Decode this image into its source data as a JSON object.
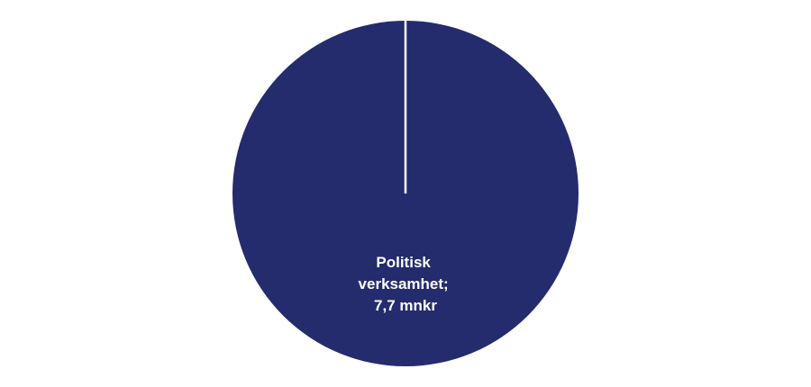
{
  "chart_data": {
    "type": "pie",
    "slices": [
      {
        "label": "Politisk verksamhet",
        "value": 7.7,
        "unit": "mnkr",
        "color": "#242c6e",
        "data_label_lines": [
          "Politisk",
          "verksamhet;",
          "7,7 mnkr"
        ]
      }
    ],
    "start_angle_deg": 0,
    "legend": "none"
  }
}
